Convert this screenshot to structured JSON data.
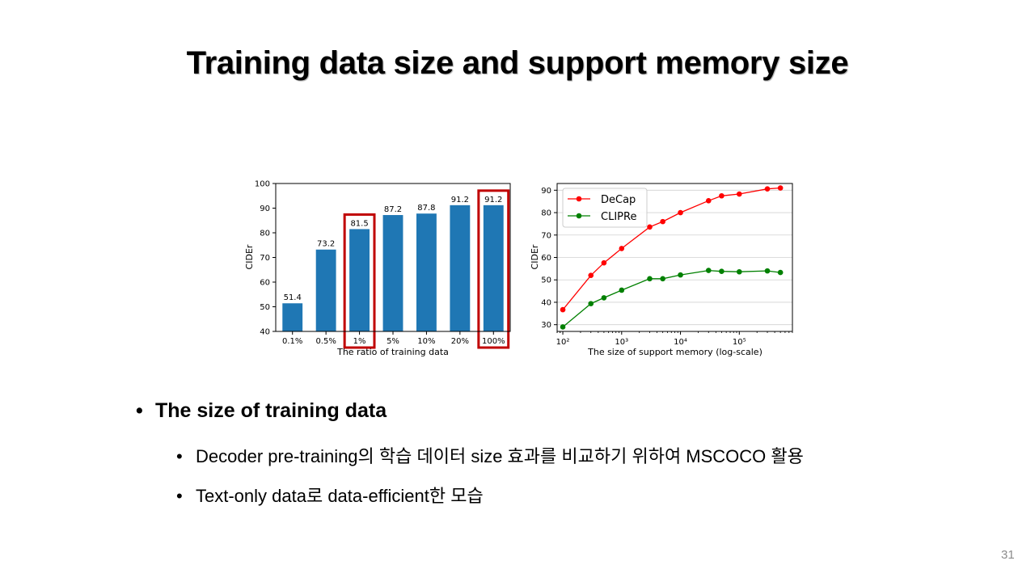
{
  "slide": {
    "title": "Training data size and support memory size",
    "page_number": "31",
    "bullets": {
      "main": "The size of training data",
      "sub1": "Decoder pre-training의 학습 데이터 size 효과를 비교하기 위하여 MSCOCO 활용",
      "sub2": "Text-only data로 data-efficient한 모습"
    }
  },
  "chart_data": [
    {
      "type": "bar",
      "xlabel": "The ratio of training data",
      "ylabel": "CIDEr",
      "ylim": [
        40,
        100
      ],
      "yticks": [
        "40",
        "50",
        "60",
        "70",
        "80",
        "90",
        "100"
      ],
      "categories": [
        "0.1%",
        "0.5%",
        "1%",
        "5%",
        "10%",
        "20%",
        "100%"
      ],
      "values": [
        51.4,
        73.2,
        81.5,
        87.2,
        87.8,
        91.2,
        91.2
      ],
      "value_labels": [
        "51.4",
        "73.2",
        "81.5",
        "87.2",
        "87.8",
        "91.2",
        "91.2"
      ],
      "highlighted": [
        "1%",
        "100%"
      ],
      "bar_color": "#1f77b4",
      "highlight_color": "#c00000"
    },
    {
      "type": "line",
      "xscale": "log",
      "xlabel": "The size of support memory (log-scale)",
      "ylabel": "CIDEr",
      "ylim": [
        27,
        93
      ],
      "xlim": [
        80,
        800000
      ],
      "yticks": [
        "30",
        "40",
        "50",
        "60",
        "70",
        "80",
        "90"
      ],
      "xticks": [
        "10²",
        "10³",
        "10⁴",
        "10⁵"
      ],
      "grid": true,
      "legend": "top-left",
      "series": [
        {
          "name": "DeCap",
          "color": "#ff0000",
          "x": [
            100,
            300,
            500,
            1000,
            3000,
            5000,
            10000,
            30000,
            50000,
            100000,
            300000,
            500000
          ],
          "y": [
            36.7,
            52.0,
            57.6,
            64.0,
            73.6,
            76.0,
            80.0,
            85.3,
            87.5,
            88.3,
            90.6,
            91.0
          ]
        },
        {
          "name": "CLIPRe",
          "color": "#008000",
          "x": [
            100,
            300,
            500,
            1000,
            3000,
            5000,
            10000,
            30000,
            50000,
            100000,
            300000,
            500000
          ],
          "y": [
            29.0,
            39.4,
            42.0,
            45.4,
            50.5,
            50.5,
            52.2,
            54.2,
            53.8,
            53.6,
            54.0,
            53.3
          ]
        }
      ]
    }
  ]
}
